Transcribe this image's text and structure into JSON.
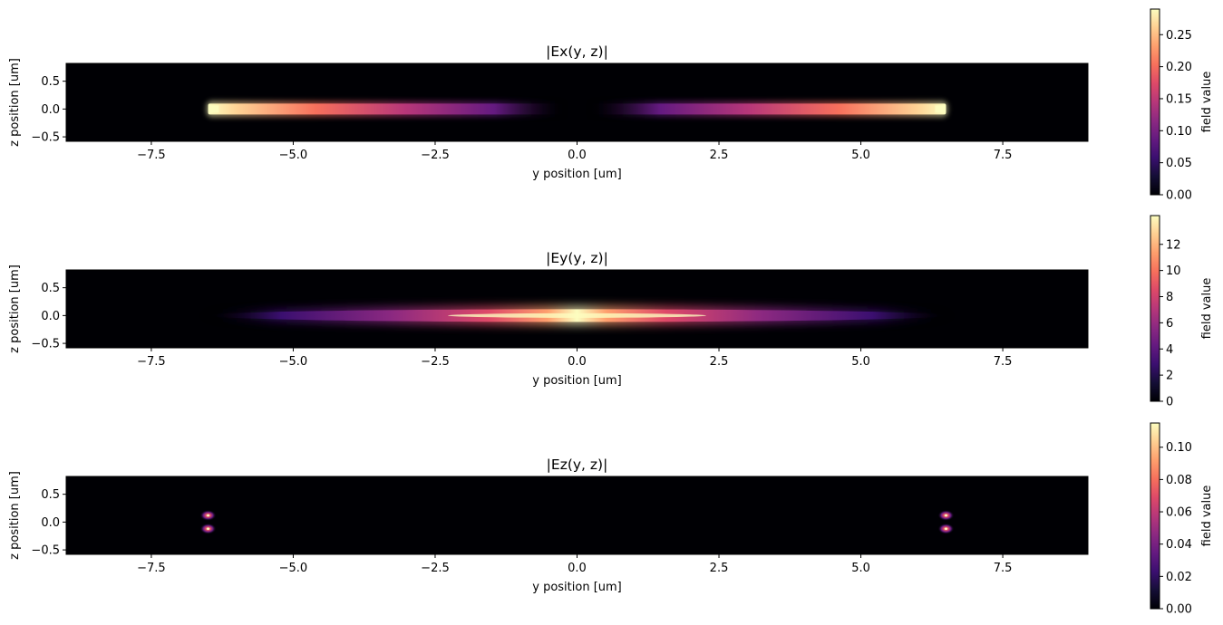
{
  "chart_data": [
    {
      "type": "heatmap",
      "title": "|Ex(y, z)|",
      "xlabel": "y position [um]",
      "ylabel": "z position [um]",
      "xlim": [
        -9.0,
        9.0
      ],
      "ylim": [
        -0.58,
        0.82
      ],
      "xticks": [
        "−7.5",
        "−5.0",
        "−2.5",
        "0.0",
        "2.5",
        "5.0",
        "7.5"
      ],
      "xtick_values": [
        -7.5,
        -5.0,
        -2.5,
        0.0,
        2.5,
        5.0,
        7.5
      ],
      "yticks": [
        "−0.5",
        "0.0",
        "0.5"
      ],
      "ytick_values": [
        -0.5,
        0.0,
        0.5
      ],
      "colormap": "magma",
      "colorbar": {
        "label": "field value",
        "min": 0.0,
        "max": 0.29,
        "ticks": [
          "0.00",
          "0.05",
          "0.10",
          "0.15",
          "0.20",
          "0.25"
        ],
        "tick_values": [
          0.0,
          0.05,
          0.1,
          0.15,
          0.2,
          0.25
        ]
      },
      "features": [
        {
          "shape": "bar",
          "y_range": [
            -6.5,
            -0.2
          ],
          "z_center": 0.0,
          "peak": 0.29,
          "peak_at_edge": -6.5
        },
        {
          "shape": "bar",
          "y_range": [
            0.2,
            6.5
          ],
          "z_center": 0.0,
          "peak": 0.29,
          "peak_at_edge": 6.5
        }
      ]
    },
    {
      "type": "heatmap",
      "title": "|Ey(y, z)|",
      "xlabel": "y position [um]",
      "ylabel": "z position [um]",
      "xlim": [
        -9.0,
        9.0
      ],
      "ylim": [
        -0.58,
        0.82
      ],
      "xticks": [
        "−7.5",
        "−5.0",
        "−2.5",
        "0.0",
        "2.5",
        "5.0",
        "7.5"
      ],
      "xtick_values": [
        -7.5,
        -5.0,
        -2.5,
        0.0,
        2.5,
        5.0,
        7.5
      ],
      "yticks": [
        "−0.5",
        "0.0",
        "0.5"
      ],
      "ytick_values": [
        -0.5,
        0.0,
        0.5
      ],
      "colormap": "magma",
      "colorbar": {
        "label": "field value",
        "min": 0,
        "max": 14.2,
        "ticks": [
          "0",
          "2",
          "4",
          "6",
          "8",
          "10",
          "12"
        ],
        "tick_values": [
          0,
          2,
          4,
          6,
          8,
          10,
          12
        ]
      },
      "features": [
        {
          "shape": "ellipse",
          "y_center": 0.0,
          "y_halfwidth": 6.5,
          "z_center": 0.0,
          "peak": 14.2
        }
      ]
    },
    {
      "type": "heatmap",
      "title": "|Ez(y, z)|",
      "xlabel": "y position [um]",
      "ylabel": "z position [um]",
      "xlim": [
        -9.0,
        9.0
      ],
      "ylim": [
        -0.58,
        0.82
      ],
      "xticks": [
        "−7.5",
        "−5.0",
        "−2.5",
        "0.0",
        "2.5",
        "5.0",
        "7.5"
      ],
      "xtick_values": [
        -7.5,
        -5.0,
        -2.5,
        0.0,
        2.5,
        5.0,
        7.5
      ],
      "yticks": [
        "−0.5",
        "0.0",
        "0.5"
      ],
      "ytick_values": [
        -0.5,
        0.0,
        0.5
      ],
      "colormap": "magma",
      "colorbar": {
        "label": "field value",
        "min": 0.0,
        "max": 0.115,
        "ticks": [
          "0.00",
          "0.02",
          "0.04",
          "0.06",
          "0.08",
          "0.10"
        ],
        "tick_values": [
          0.0,
          0.02,
          0.04,
          0.06,
          0.08,
          0.1
        ]
      },
      "features": [
        {
          "shape": "spot",
          "y": -6.5,
          "z": 0.12,
          "peak": 0.115
        },
        {
          "shape": "spot",
          "y": -6.5,
          "z": -0.12,
          "peak": 0.115
        },
        {
          "shape": "spot",
          "y": 6.5,
          "z": 0.12,
          "peak": 0.115
        },
        {
          "shape": "spot",
          "y": 6.5,
          "z": -0.12,
          "peak": 0.115
        }
      ]
    }
  ]
}
